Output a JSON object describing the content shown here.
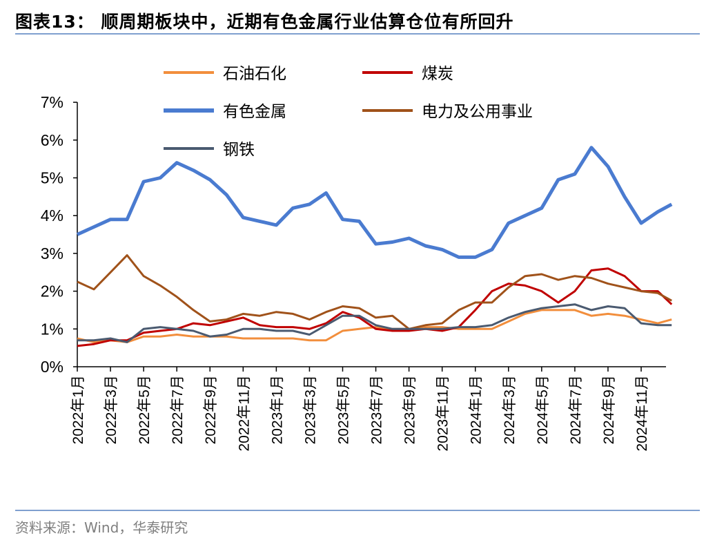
{
  "title": "图表13：  顺周期板块中，近期有色金属行业估算仓位有所回升",
  "source": "资料来源：Wind，华泰研究",
  "chart_data": {
    "type": "line",
    "title": "",
    "xlabel": "",
    "ylabel": "",
    "ylim": [
      0,
      7
    ],
    "yticks": [
      "0%",
      "1%",
      "2%",
      "3%",
      "4%",
      "5%",
      "6%",
      "7%"
    ],
    "xticks": [
      "2022年1月",
      "2022年3月",
      "2022年5月",
      "2022年7月",
      "2022年9月",
      "2022年11月",
      "2023年1月",
      "2023年3月",
      "2023年5月",
      "2023年7月",
      "2023年9月",
      "2023年11月",
      "2024年1月",
      "2024年3月",
      "2024年5月",
      "2024年7月",
      "2024年9月",
      "2024年11月"
    ],
    "grid": false,
    "legend_placement": "top",
    "x": [
      "2022-01",
      "2022-02",
      "2022-03",
      "2022-04",
      "2022-05",
      "2022-06",
      "2022-07",
      "2022-08",
      "2022-09",
      "2022-10",
      "2022-11",
      "2022-12",
      "2023-01",
      "2023-02",
      "2023-03",
      "2023-04",
      "2023-05",
      "2023-06",
      "2023-07",
      "2023-08",
      "2023-09",
      "2023-10",
      "2023-11",
      "2023-12",
      "2024-01",
      "2024-02",
      "2024-03",
      "2024-04",
      "2024-05",
      "2024-06",
      "2024-07",
      "2024-08",
      "2024-09",
      "2024-10",
      "2024-11",
      "2024-12",
      "2024-12-27"
    ],
    "series": [
      {
        "name": "石油石化",
        "color": "#f28e3c",
        "values": [
          0.75,
          0.65,
          0.7,
          0.65,
          0.8,
          0.8,
          0.85,
          0.8,
          0.8,
          0.8,
          0.75,
          0.75,
          0.75,
          0.75,
          0.7,
          0.7,
          0.95,
          1.0,
          1.05,
          1.0,
          1.0,
          1.05,
          1.05,
          1.0,
          1.0,
          1.0,
          1.2,
          1.4,
          1.5,
          1.5,
          1.5,
          1.35,
          1.4,
          1.35,
          1.25,
          1.15,
          1.25
        ]
      },
      {
        "name": "煤炭",
        "color": "#c00000",
        "values": [
          0.55,
          0.6,
          0.7,
          0.7,
          0.9,
          0.95,
          1.0,
          1.15,
          1.1,
          1.2,
          1.3,
          1.1,
          1.05,
          1.05,
          1.0,
          1.15,
          1.45,
          1.3,
          1.0,
          0.95,
          0.95,
          1.0,
          0.95,
          1.05,
          1.5,
          2.0,
          2.2,
          2.15,
          2.0,
          1.7,
          2.0,
          2.55,
          2.6,
          2.4,
          2.0,
          2.0,
          1.65
        ]
      },
      {
        "name": "有色金属",
        "color": "#4a7bd0",
        "values": [
          3.5,
          3.7,
          3.9,
          3.9,
          4.9,
          5.0,
          5.4,
          5.2,
          4.95,
          4.55,
          3.95,
          3.85,
          3.75,
          4.2,
          4.3,
          4.6,
          3.9,
          3.85,
          3.25,
          3.3,
          3.4,
          3.2,
          3.1,
          2.9,
          2.9,
          3.1,
          3.8,
          4.0,
          4.2,
          4.95,
          5.1,
          5.8,
          5.3,
          4.5,
          3.8,
          4.1,
          4.3
        ]
      },
      {
        "name": "电力及公用事业",
        "color": "#a0521a",
        "values": [
          2.25,
          2.05,
          2.5,
          2.95,
          2.4,
          2.15,
          1.85,
          1.5,
          1.2,
          1.25,
          1.4,
          1.35,
          1.45,
          1.4,
          1.25,
          1.45,
          1.6,
          1.55,
          1.3,
          1.35,
          1.0,
          1.1,
          1.15,
          1.5,
          1.7,
          1.7,
          2.1,
          2.4,
          2.45,
          2.3,
          2.4,
          2.35,
          2.2,
          2.1,
          2.0,
          1.95,
          1.75
        ]
      },
      {
        "name": "钢铁",
        "color": "#4a5a70",
        "values": [
          0.7,
          0.7,
          0.75,
          0.65,
          1.0,
          1.05,
          1.0,
          0.95,
          0.8,
          0.85,
          1.0,
          1.0,
          0.95,
          0.95,
          0.85,
          1.1,
          1.35,
          1.35,
          1.1,
          1.0,
          1.0,
          1.0,
          1.0,
          1.05,
          1.05,
          1.1,
          1.3,
          1.45,
          1.55,
          1.6,
          1.65,
          1.5,
          1.6,
          1.55,
          1.15,
          1.1,
          1.1
        ]
      }
    ]
  }
}
